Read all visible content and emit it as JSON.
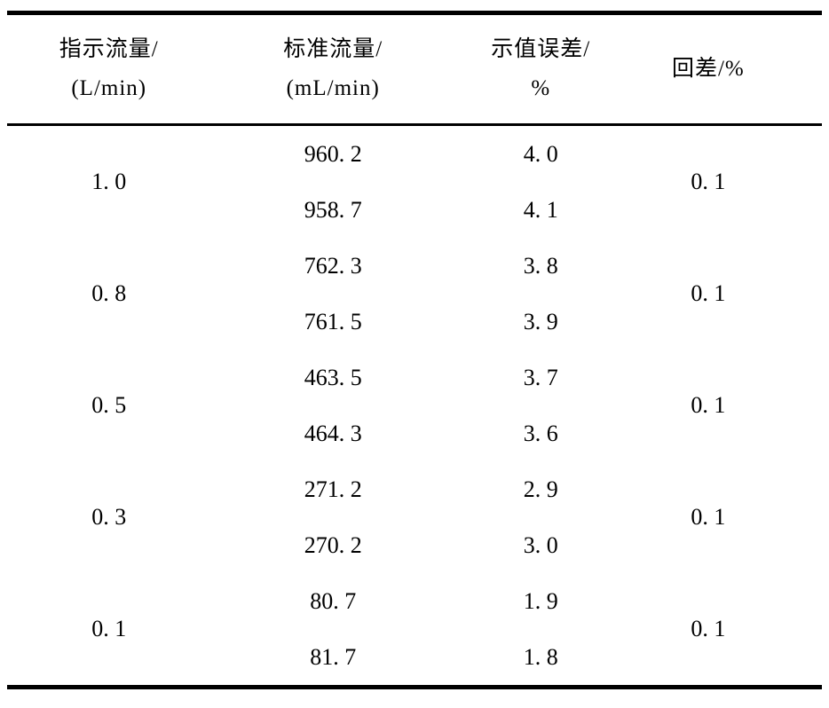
{
  "colors": {
    "background": "#ffffff",
    "text": "#000000",
    "rule": "#000000"
  },
  "table": {
    "columns": [
      {
        "line1": "指示流量/",
        "line2": "(L/min)"
      },
      {
        "line1": "标准流量/",
        "line2": "(mL/min)"
      },
      {
        "line1": "示值误差/",
        "line2": "%"
      },
      {
        "line1": "回差/%",
        "line2": ""
      }
    ],
    "groups": [
      {
        "indicated": "1. 0",
        "standard": [
          "960. 2",
          "958. 7"
        ],
        "error": [
          "4. 0",
          "4. 1"
        ],
        "hysteresis": "0. 1"
      },
      {
        "indicated": "0. 8",
        "standard": [
          "762. 3",
          "761. 5"
        ],
        "error": [
          "3. 8",
          "3. 9"
        ],
        "hysteresis": "0. 1"
      },
      {
        "indicated": "0. 5",
        "standard": [
          "463. 5",
          "464. 3"
        ],
        "error": [
          "3. 7",
          "3. 6"
        ],
        "hysteresis": "0. 1"
      },
      {
        "indicated": "0. 3",
        "standard": [
          "271. 2",
          "270. 2"
        ],
        "error": [
          "2. 9",
          "3. 0"
        ],
        "hysteresis": "0. 1"
      },
      {
        "indicated": "0. 1",
        "standard": [
          "80. 7",
          "81. 7"
        ],
        "error": [
          "1. 9",
          "1. 8"
        ],
        "hysteresis": "0. 1"
      }
    ]
  }
}
